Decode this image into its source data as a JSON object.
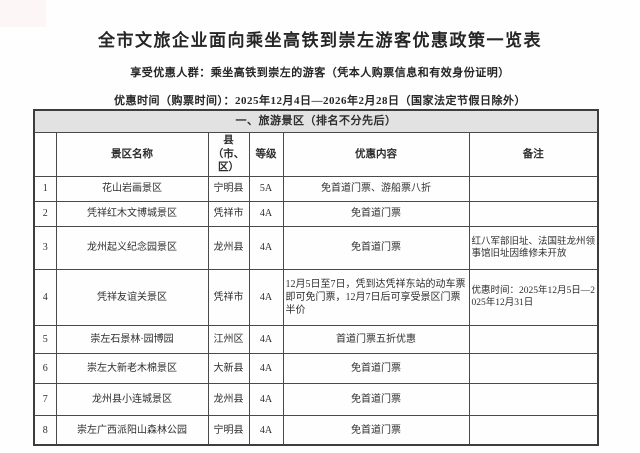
{
  "page": {
    "title": "全市文旅企业面向乘坐高铁到崇左游客优惠政策一览表",
    "audience_line": "享受优惠人群：乘坐高铁到崇左的游客（凭本人购票信息和有效身份证明）",
    "time_line": "优惠时间（购票时间）：2025年12月4日—2026年2月28日（国家法定节假日除外）"
  },
  "table": {
    "section_title": "一、旅游景区（排名不分先后）",
    "columns": [
      "",
      "景区名称",
      "县（市、区）",
      "等级",
      "优惠内容",
      "备注"
    ],
    "rows": [
      {
        "no": "1",
        "name": "花山岩画景区",
        "county": "宁明县",
        "grade": "5A",
        "benefit": "免首道门票、游船票八折",
        "remark": ""
      },
      {
        "no": "2",
        "name": "凭祥红木文博城景区",
        "county": "凭祥市",
        "grade": "4A",
        "benefit": "免首道门票",
        "remark": ""
      },
      {
        "no": "3",
        "name": "龙州起义纪念园景区",
        "county": "龙州县",
        "grade": "4A",
        "benefit": "免首道门票",
        "remark": "红八军部旧址、法国驻龙州领事馆旧址因维修未开放"
      },
      {
        "no": "4",
        "name": "凭祥友谊关景区",
        "county": "凭祥市",
        "grade": "4A",
        "benefit": "12月5日至7日，凭到达凭祥东站的动车票即可免门票，12月7日后可享受景区门票半价",
        "remark": "优惠时间：2025年12月5日—2025年12月31日"
      },
      {
        "no": "5",
        "name": "崇左石景林·园博园",
        "county": "江州区",
        "grade": "4A",
        "benefit": "首道门票五折优惠",
        "remark": ""
      },
      {
        "no": "6",
        "name": "崇左大新老木棉景区",
        "county": "大新县",
        "grade": "4A",
        "benefit": "免首道门票",
        "remark": ""
      },
      {
        "no": "7",
        "name": "龙州县小连城景区",
        "county": "龙州县",
        "grade": "4A",
        "benefit": "免首道门票",
        "remark": ""
      },
      {
        "no": "8",
        "name": "崇左广西派阳山森林公园",
        "county": "宁明县",
        "grade": "4A",
        "benefit": "免首道门票",
        "remark": ""
      }
    ]
  },
  "colors": {
    "section_band_bg": "#e2e2e2",
    "border": "#4a4a4a",
    "text": "#2e2e2e",
    "page_bg": "#fefefe"
  }
}
